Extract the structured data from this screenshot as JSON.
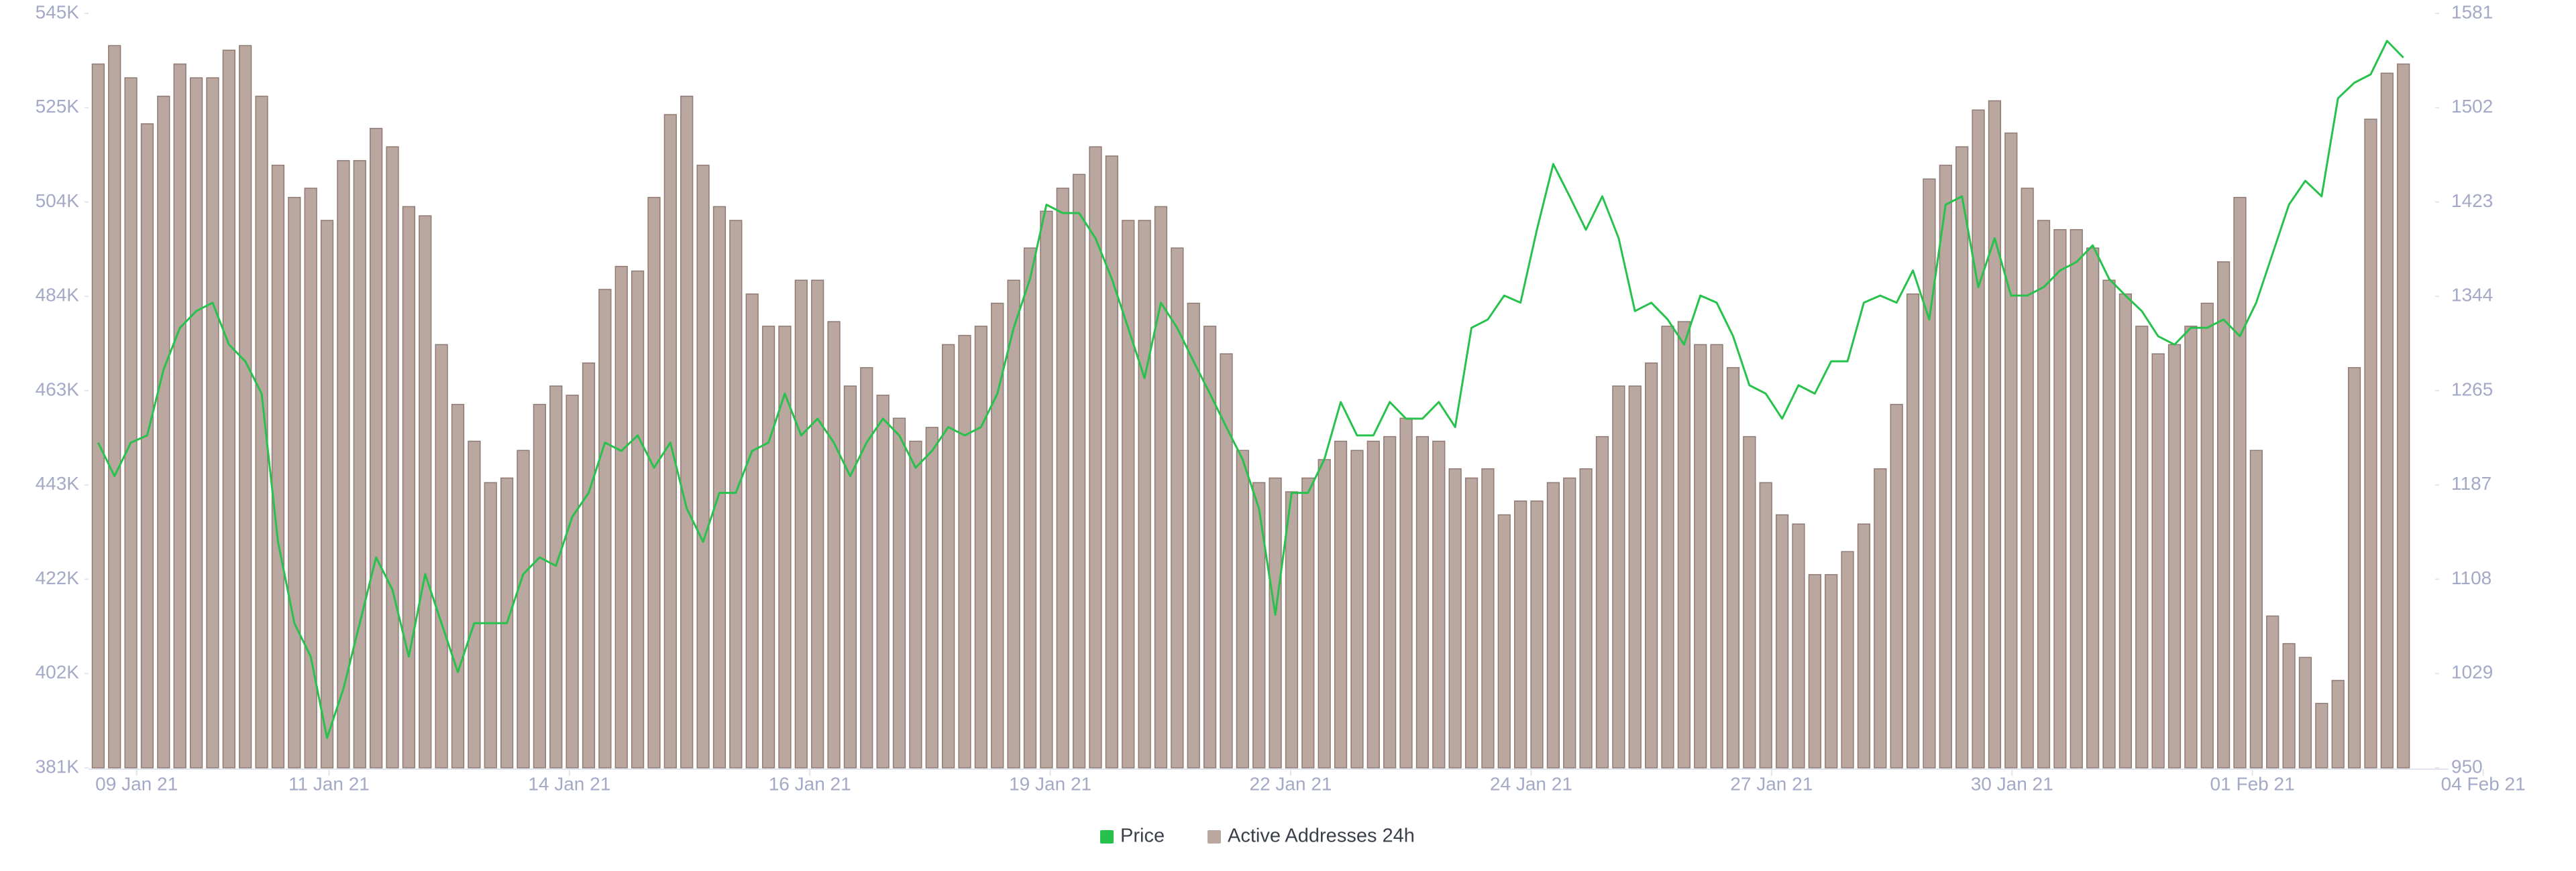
{
  "chart_data": {
    "type": "combo",
    "x": [
      8.6,
      8.77,
      8.94,
      9.11,
      9.28,
      9.45,
      9.62,
      9.79,
      9.96,
      10.13,
      10.3,
      10.47,
      10.64,
      10.81,
      10.98,
      11.15,
      11.32,
      11.49,
      11.66,
      11.83,
      12,
      12.17,
      12.34,
      12.51,
      12.68,
      12.85,
      13.02,
      13.19,
      13.36,
      13.53,
      13.7,
      13.87,
      14.04,
      14.21,
      14.38,
      14.55,
      14.72,
      14.89,
      15.06,
      15.23,
      15.4,
      15.57,
      15.74,
      15.91,
      16.08,
      16.25,
      16.42,
      16.59,
      16.76,
      16.93,
      17.1,
      17.27,
      17.44,
      17.61,
      17.78,
      17.95,
      18.12,
      18.29,
      18.46,
      18.63,
      18.8,
      18.97,
      19.14,
      19.31,
      19.48,
      19.65,
      19.82,
      19.99,
      20.16,
      20.33,
      20.5,
      20.67,
      20.84,
      21.01,
      21.18,
      21.35,
      21.52,
      21.69,
      21.86,
      22.03,
      22.2,
      22.37,
      22.54,
      22.71,
      22.88,
      23.05,
      23.22,
      23.39,
      23.56,
      23.73,
      23.9,
      24.07,
      24.24,
      24.41,
      24.58,
      24.75,
      24.92,
      25.09,
      25.26,
      25.43,
      25.6,
      25.77,
      25.94,
      26.11,
      26.28,
      26.45,
      26.62,
      26.79,
      26.96,
      27.13,
      27.3,
      27.47,
      27.64,
      27.81,
      27.98,
      28.15,
      28.32,
      28.49,
      28.66,
      28.83,
      29,
      29.17,
      29.34,
      29.51,
      29.68,
      29.85,
      30.02,
      30.19,
      30.36,
      30.53,
      30.7,
      30.87,
      31.04,
      31.21,
      31.38,
      31.55,
      31.72,
      31.89,
      32.06,
      32.23,
      32.4,
      32.57
    ],
    "xlim": [
      8.5,
      32.9
    ],
    "xticks": [
      {
        "value": 9,
        "label": "09 Jan 21"
      },
      {
        "value": 11,
        "label": "11 Jan 21"
      },
      {
        "value": 13.5,
        "label": "14 Jan 21"
      },
      {
        "value": 16,
        "label": "16 Jan 21"
      },
      {
        "value": 18.5,
        "label": "19 Jan 21"
      },
      {
        "value": 21,
        "label": "22 Jan 21"
      },
      {
        "value": 23.5,
        "label": "24 Jan 21"
      },
      {
        "value": 26,
        "label": "27 Jan 21"
      },
      {
        "value": 28.5,
        "label": "30 Jan 21"
      },
      {
        "value": 31,
        "label": "01 Feb 21"
      },
      {
        "value": 33.4,
        "label": "04 Feb 21"
      }
    ],
    "ylim": [
      381000,
      545000
    ],
    "yticks": [
      {
        "value": 381000,
        "label": "381K"
      },
      {
        "value": 401500,
        "label": "402K"
      },
      {
        "value": 422000,
        "label": "422K"
      },
      {
        "value": 442500,
        "label": "443K"
      },
      {
        "value": 463000,
        "label": "463K"
      },
      {
        "value": 483500,
        "label": "484K"
      },
      {
        "value": 504000,
        "label": "504K"
      },
      {
        "value": 524500,
        "label": "525K"
      },
      {
        "value": 545000,
        "label": "545K"
      }
    ],
    "y2lim": [
      950,
      1581
    ],
    "y2ticks": [
      950,
      {
        "value": 1028.875,
        "label": "1029"
      },
      {
        "value": 1107.75,
        "label": "1108"
      },
      {
        "value": 1186.625,
        "label": "1187"
      },
      {
        "value": 1265.5,
        "label": "1265"
      },
      {
        "value": 1344.375,
        "label": "1344"
      },
      {
        "value": 1423.25,
        "label": "1423"
      },
      {
        "value": 1502.125,
        "label": "1502"
      },
      1581
    ],
    "grid": false,
    "legend": "bottom",
    "series": [
      {
        "name": "Price",
        "type": "line",
        "axis": "y2",
        "color": "#27c24c",
        "values": [
          1222,
          1194,
          1222,
          1228,
          1283,
          1318,
          1332,
          1339,
          1304,
          1290,
          1263,
          1139,
          1071,
          1043,
          975,
          1016,
          1071,
          1126,
          1099,
          1043,
          1112,
          1071,
          1030,
          1071,
          1071,
          1071,
          1112,
          1126,
          1119,
          1160,
          1180,
          1222,
          1215,
          1228,
          1201,
          1222,
          1167,
          1139,
          1180,
          1180,
          1215,
          1222,
          1263,
          1228,
          1242,
          1222,
          1194,
          1222,
          1242,
          1228,
          1201,
          1215,
          1235,
          1228,
          1235,
          1263,
          1318,
          1359,
          1421,
          1414,
          1414,
          1393,
          1359,
          1318,
          1276,
          1339,
          1318,
          1290,
          1263,
          1235,
          1208,
          1167,
          1078,
          1180,
          1180,
          1208,
          1256,
          1228,
          1228,
          1256,
          1242,
          1242,
          1256,
          1235,
          1318,
          1325,
          1345,
          1339,
          1400,
          1455,
          1428,
          1400,
          1428,
          1393,
          1332,
          1339,
          1325,
          1304,
          1345,
          1339,
          1311,
          1270,
          1263,
          1242,
          1270,
          1263,
          1290,
          1290,
          1339,
          1345,
          1339,
          1366,
          1325,
          1421,
          1428,
          1352,
          1393,
          1345,
          1345,
          1352,
          1366,
          1373,
          1387,
          1359,
          1345,
          1332,
          1311,
          1304,
          1318,
          1318,
          1325,
          1311,
          1339,
          1380,
          1421,
          1441,
          1428,
          1510,
          1523,
          1530,
          1558,
          1544
        ]
      },
      {
        "name": "Active Addresses 24h",
        "type": "bar",
        "axis": "y",
        "color": "#b9a7a0",
        "values": [
          534000,
          538000,
          531000,
          521000,
          527000,
          534000,
          531000,
          531000,
          537000,
          538000,
          527000,
          512000,
          505000,
          507000,
          500000,
          513000,
          513000,
          520000,
          516000,
          503000,
          501000,
          473000,
          460000,
          452000,
          443000,
          444000,
          450000,
          460000,
          464000,
          462000,
          469000,
          485000,
          490000,
          489000,
          505000,
          523000,
          527000,
          512000,
          503000,
          500000,
          484000,
          477000,
          477000,
          487000,
          487000,
          478000,
          464000,
          468000,
          462000,
          457000,
          452000,
          455000,
          473000,
          475000,
          477000,
          482000,
          487000,
          494000,
          502000,
          507000,
          510000,
          516000,
          514000,
          500000,
          500000,
          503000,
          494000,
          482000,
          477000,
          471000,
          450000,
          443000,
          444000,
          441000,
          444000,
          448000,
          452000,
          450000,
          452000,
          453000,
          457000,
          453000,
          452000,
          446000,
          444000,
          446000,
          436000,
          439000,
          439000,
          443000,
          444000,
          446000,
          453000,
          464000,
          464000,
          469000,
          477000,
          478000,
          473000,
          473000,
          468000,
          453000,
          443000,
          436000,
          434000,
          423000,
          423000,
          428000,
          434000,
          446000,
          460000,
          484000,
          509000,
          512000,
          516000,
          524000,
          526000,
          519000,
          507000,
          500000,
          498000,
          498000,
          494000,
          487000,
          484000,
          477000,
          471000,
          473000,
          477000,
          482000,
          491000,
          505000,
          450000,
          414000,
          408000,
          405000,
          395000,
          400000,
          468000,
          522000,
          532000,
          534000
        ]
      }
    ]
  }
}
